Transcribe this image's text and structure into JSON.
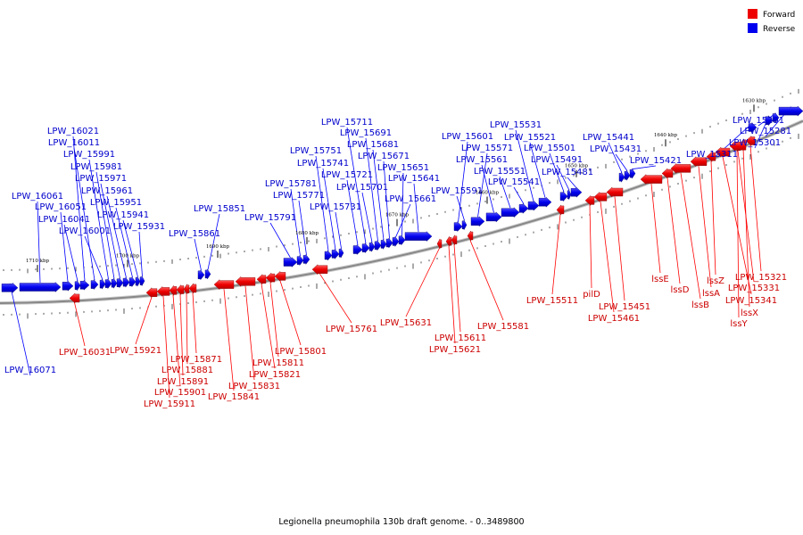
{
  "legend": {
    "forward": {
      "label": "Forward",
      "color": "#ff0000"
    },
    "reverse": {
      "label": "Reverse",
      "color": "#0000ff"
    }
  },
  "caption": "Legionella pneumophila 130b draft genome. - 0..3489800",
  "backbone_color": "#888888",
  "kbp_ticks": [
    "1710 kbp",
    "1700 kbp",
    "1690 kbp",
    "1680 kbp",
    "1670 kbp",
    "1660 kbp",
    "1650 kbp",
    "1640 kbp",
    "1630 kbp"
  ],
  "reverse_genes": [
    "LPW_16071",
    "LPW_16061",
    "LPW_16051",
    "LPW_16041",
    "LPW_16021",
    "LPW_16011",
    "LPW_16001",
    "LPW_15991",
    "LPW_15981",
    "LPW_15971",
    "LPW_15961",
    "LPW_15951",
    "LPW_15941",
    "LPW_15931",
    "LPW_15861",
    "LPW_15851",
    "LPW_15791",
    "LPW_15781",
    "LPW_15771",
    "LPW_15751",
    "LPW_15741",
    "LPW_15731",
    "LPW_15721",
    "LPW_15711",
    "LPW_15701",
    "LPW_15691",
    "LPW_15681",
    "LPW_15671",
    "LPW_15661",
    "LPW_15651",
    "LPW_15641",
    "LPW_15601",
    "LPW_15591",
    "LPW_15571",
    "LPW_15561",
    "LPW_15551",
    "LPW_15541",
    "LPW_15531",
    "LPW_15521",
    "LPW_15501",
    "LPW_15491",
    "LPW_15481",
    "LPW_15441",
    "LPW_15431",
    "LPW_15421",
    "LPW_15311",
    "LPW_15301",
    "LPW_15291",
    "LPW_15281"
  ],
  "forward_genes": [
    "LPW_16031",
    "LPW_15921",
    "LPW_15911",
    "LPW_15901",
    "LPW_15891",
    "LPW_15881",
    "LPW_15871",
    "LPW_15841",
    "LPW_15831",
    "LPW_15821",
    "LPW_15811",
    "LPW_15801",
    "LPW_15761",
    "LPW_15631",
    "LPW_15621",
    "LPW_15611",
    "LPW_15581",
    "LPW_15511",
    "pilD",
    "LPW_15461",
    "LPW_15451",
    "lssB",
    "lssD",
    "lssE",
    "lssA",
    "lssZ",
    "lssY",
    "lssX",
    "LPW_15341",
    "LPW_15331",
    "LPW_15321"
  ]
}
